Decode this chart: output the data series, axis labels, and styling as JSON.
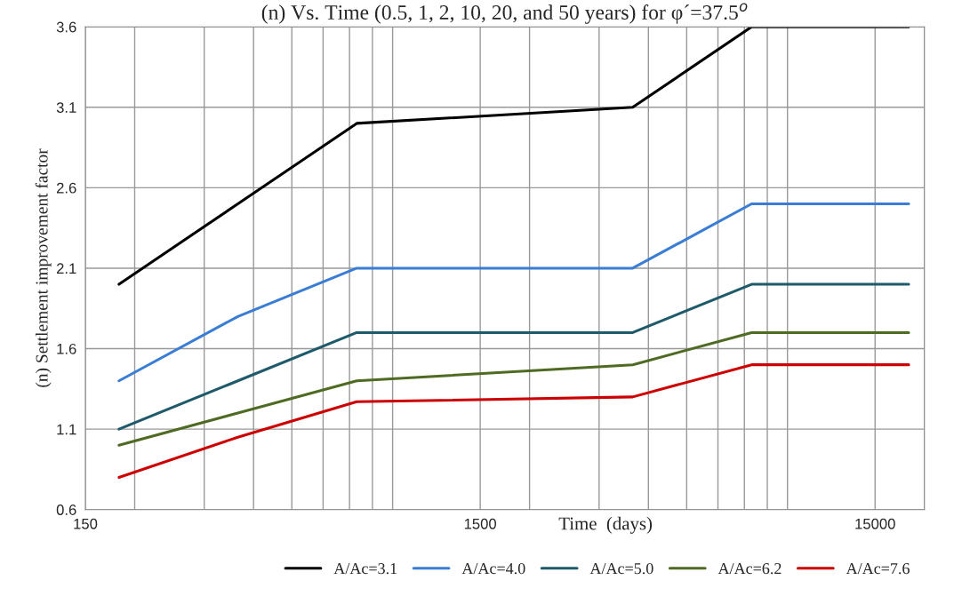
{
  "chart_data": {
    "type": "line",
    "title": "(n) Vs. Time (0.5, 1, 2, 10, 20, and 50 years) for φ´=37.5$^{o}$",
    "xlabel": "Time  (days)",
    "ylabel": "(n) Settlement improvement factor",
    "x": [
      182.5,
      365,
      730,
      3650,
      7300,
      18250
    ],
    "series": [
      {
        "name": "A/Ac=3.1",
        "color": "#000000",
        "values": [
          2.0,
          2.5,
          3.0,
          3.1,
          3.6,
          3.6
        ]
      },
      {
        "name": "A/Ac=4.0",
        "color": "#3a7dd4",
        "values": [
          1.4,
          1.8,
          2.1,
          2.1,
          2.5,
          2.5
        ]
      },
      {
        "name": "A/Ac=5.0",
        "color": "#1f5a6a",
        "values": [
          1.1,
          1.4,
          1.7,
          1.7,
          2.0,
          2.0
        ]
      },
      {
        "name": "A/Ac=6.2",
        "color": "#4f6a22",
        "values": [
          1.0,
          1.2,
          1.4,
          1.5,
          1.7,
          1.7
        ]
      },
      {
        "name": "A/Ac=7.6",
        "color": "#cc0000",
        "values": [
          0.8,
          1.05,
          1.27,
          1.3,
          1.5,
          1.5
        ]
      }
    ],
    "log": "x",
    "xlim": [
      150,
      20000
    ],
    "xticks": [
      150,
      1500,
      15000
    ],
    "ylim": [
      0.6,
      3.6
    ],
    "yticks": [
      0.6,
      1.1,
      1.6,
      2.1,
      2.6,
      3.1,
      3.6
    ],
    "grid": true,
    "legend": "bottom",
    "marker": "none",
    "line_style": "solid"
  }
}
